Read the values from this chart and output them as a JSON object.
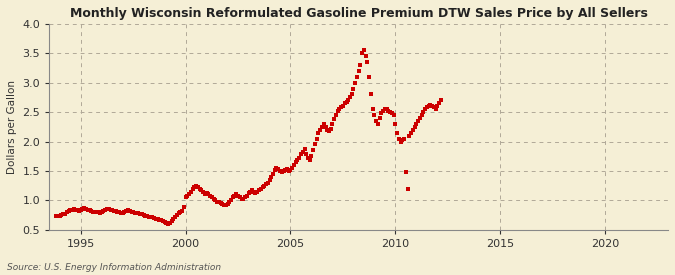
{
  "title": "Monthly Wisconsin Reformulated Gasoline Premium DTW Sales Price by All Sellers",
  "ylabel": "Dollars per Gallon",
  "source": "Source: U.S. Energy Information Administration",
  "background_color": "#f5efd6",
  "plot_bg_color": "#faf6ea",
  "line_color": "#cc0000",
  "ylim": [
    0.5,
    4.0
  ],
  "xlim": [
    1993.5,
    2023.0
  ],
  "yticks": [
    0.5,
    1.0,
    1.5,
    2.0,
    2.5,
    3.0,
    3.5,
    4.0
  ],
  "xticks": [
    1995,
    2000,
    2005,
    2010,
    2015,
    2020
  ],
  "years_data": [
    [
      1993.83,
      0.73
    ],
    [
      1993.92,
      0.74
    ],
    [
      1994.0,
      0.74
    ],
    [
      1994.08,
      0.75
    ],
    [
      1994.17,
      0.76
    ],
    [
      1994.25,
      0.77
    ],
    [
      1994.33,
      0.8
    ],
    [
      1994.42,
      0.82
    ],
    [
      1994.5,
      0.83
    ],
    [
      1994.58,
      0.84
    ],
    [
      1994.67,
      0.85
    ],
    [
      1994.75,
      0.84
    ],
    [
      1994.83,
      0.83
    ],
    [
      1994.92,
      0.82
    ],
    [
      1995.0,
      0.83
    ],
    [
      1995.08,
      0.85
    ],
    [
      1995.17,
      0.87
    ],
    [
      1995.25,
      0.86
    ],
    [
      1995.33,
      0.84
    ],
    [
      1995.42,
      0.83
    ],
    [
      1995.5,
      0.82
    ],
    [
      1995.58,
      0.81
    ],
    [
      1995.67,
      0.81
    ],
    [
      1995.75,
      0.8
    ],
    [
      1995.83,
      0.8
    ],
    [
      1995.92,
      0.79
    ],
    [
      1996.0,
      0.8
    ],
    [
      1996.08,
      0.82
    ],
    [
      1996.17,
      0.84
    ],
    [
      1996.25,
      0.86
    ],
    [
      1996.33,
      0.85
    ],
    [
      1996.42,
      0.84
    ],
    [
      1996.5,
      0.83
    ],
    [
      1996.58,
      0.82
    ],
    [
      1996.67,
      0.82
    ],
    [
      1996.75,
      0.81
    ],
    [
      1996.83,
      0.8
    ],
    [
      1996.92,
      0.79
    ],
    [
      1997.0,
      0.79
    ],
    [
      1997.08,
      0.8
    ],
    [
      1997.17,
      0.82
    ],
    [
      1997.25,
      0.83
    ],
    [
      1997.33,
      0.82
    ],
    [
      1997.42,
      0.81
    ],
    [
      1997.5,
      0.8
    ],
    [
      1997.58,
      0.79
    ],
    [
      1997.67,
      0.79
    ],
    [
      1997.75,
      0.78
    ],
    [
      1997.83,
      0.77
    ],
    [
      1997.92,
      0.76
    ],
    [
      1998.0,
      0.75
    ],
    [
      1998.08,
      0.74
    ],
    [
      1998.17,
      0.73
    ],
    [
      1998.25,
      0.72
    ],
    [
      1998.33,
      0.72
    ],
    [
      1998.42,
      0.71
    ],
    [
      1998.5,
      0.7
    ],
    [
      1998.58,
      0.69
    ],
    [
      1998.67,
      0.68
    ],
    [
      1998.75,
      0.67
    ],
    [
      1998.83,
      0.66
    ],
    [
      1998.92,
      0.65
    ],
    [
      1999.0,
      0.63
    ],
    [
      1999.08,
      0.61
    ],
    [
      1999.17,
      0.6
    ],
    [
      1999.25,
      0.62
    ],
    [
      1999.33,
      0.65
    ],
    [
      1999.42,
      0.68
    ],
    [
      1999.5,
      0.72
    ],
    [
      1999.58,
      0.75
    ],
    [
      1999.67,
      0.78
    ],
    [
      1999.75,
      0.8
    ],
    [
      1999.83,
      0.82
    ],
    [
      1999.92,
      0.88
    ],
    [
      2000.0,
      1.05
    ],
    [
      2000.08,
      1.08
    ],
    [
      2000.17,
      1.1
    ],
    [
      2000.25,
      1.15
    ],
    [
      2000.33,
      1.2
    ],
    [
      2000.42,
      1.22
    ],
    [
      2000.5,
      1.25
    ],
    [
      2000.58,
      1.22
    ],
    [
      2000.67,
      1.2
    ],
    [
      2000.75,
      1.18
    ],
    [
      2000.83,
      1.15
    ],
    [
      2000.92,
      1.1
    ],
    [
      2001.0,
      1.12
    ],
    [
      2001.08,
      1.1
    ],
    [
      2001.17,
      1.08
    ],
    [
      2001.25,
      1.05
    ],
    [
      2001.33,
      1.02
    ],
    [
      2001.42,
      1.0
    ],
    [
      2001.5,
      0.98
    ],
    [
      2001.58,
      0.97
    ],
    [
      2001.67,
      0.95
    ],
    [
      2001.75,
      0.93
    ],
    [
      2001.83,
      0.92
    ],
    [
      2001.92,
      0.92
    ],
    [
      2002.0,
      0.94
    ],
    [
      2002.08,
      0.97
    ],
    [
      2002.17,
      1.0
    ],
    [
      2002.25,
      1.05
    ],
    [
      2002.33,
      1.08
    ],
    [
      2002.42,
      1.1
    ],
    [
      2002.5,
      1.08
    ],
    [
      2002.58,
      1.05
    ],
    [
      2002.67,
      1.03
    ],
    [
      2002.75,
      1.02
    ],
    [
      2002.83,
      1.05
    ],
    [
      2002.92,
      1.08
    ],
    [
      2003.0,
      1.12
    ],
    [
      2003.08,
      1.15
    ],
    [
      2003.17,
      1.18
    ],
    [
      2003.25,
      1.15
    ],
    [
      2003.33,
      1.12
    ],
    [
      2003.42,
      1.15
    ],
    [
      2003.5,
      1.18
    ],
    [
      2003.58,
      1.2
    ],
    [
      2003.67,
      1.22
    ],
    [
      2003.75,
      1.25
    ],
    [
      2003.83,
      1.28
    ],
    [
      2003.92,
      1.3
    ],
    [
      2004.0,
      1.35
    ],
    [
      2004.08,
      1.4
    ],
    [
      2004.17,
      1.45
    ],
    [
      2004.25,
      1.52
    ],
    [
      2004.33,
      1.55
    ],
    [
      2004.42,
      1.53
    ],
    [
      2004.5,
      1.5
    ],
    [
      2004.58,
      1.48
    ],
    [
      2004.67,
      1.5
    ],
    [
      2004.75,
      1.52
    ],
    [
      2004.83,
      1.53
    ],
    [
      2004.92,
      1.5
    ],
    [
      2005.0,
      1.52
    ],
    [
      2005.08,
      1.55
    ],
    [
      2005.17,
      1.6
    ],
    [
      2005.25,
      1.65
    ],
    [
      2005.33,
      1.68
    ],
    [
      2005.42,
      1.72
    ],
    [
      2005.5,
      1.78
    ],
    [
      2005.58,
      1.82
    ],
    [
      2005.67,
      1.88
    ],
    [
      2005.75,
      1.78
    ],
    [
      2005.83,
      1.72
    ],
    [
      2005.92,
      1.68
    ],
    [
      2006.0,
      1.75
    ],
    [
      2006.08,
      1.85
    ],
    [
      2006.17,
      1.95
    ],
    [
      2006.25,
      2.05
    ],
    [
      2006.33,
      2.15
    ],
    [
      2006.42,
      2.2
    ],
    [
      2006.5,
      2.25
    ],
    [
      2006.58,
      2.3
    ],
    [
      2006.67,
      2.25
    ],
    [
      2006.75,
      2.2
    ],
    [
      2006.83,
      2.18
    ],
    [
      2006.92,
      2.22
    ],
    [
      2007.0,
      2.3
    ],
    [
      2007.08,
      2.38
    ],
    [
      2007.17,
      2.45
    ],
    [
      2007.25,
      2.52
    ],
    [
      2007.33,
      2.55
    ],
    [
      2007.42,
      2.58
    ],
    [
      2007.5,
      2.6
    ],
    [
      2007.58,
      2.65
    ],
    [
      2007.67,
      2.68
    ],
    [
      2007.75,
      2.7
    ],
    [
      2007.83,
      2.75
    ],
    [
      2007.92,
      2.8
    ],
    [
      2008.0,
      2.9
    ],
    [
      2008.08,
      3.0
    ],
    [
      2008.17,
      3.1
    ],
    [
      2008.25,
      3.2
    ],
    [
      2008.33,
      3.3
    ],
    [
      2008.42,
      3.5
    ],
    [
      2008.5,
      3.55
    ],
    [
      2008.58,
      3.45
    ],
    [
      2008.67,
      3.35
    ],
    [
      2008.75,
      3.1
    ],
    [
      2008.83,
      2.8
    ],
    [
      2008.92,
      2.55
    ],
    [
      2009.0,
      2.45
    ],
    [
      2009.08,
      2.35
    ],
    [
      2009.17,
      2.3
    ],
    [
      2009.25,
      2.4
    ],
    [
      2009.33,
      2.48
    ],
    [
      2009.42,
      2.52
    ],
    [
      2009.5,
      2.55
    ],
    [
      2009.58,
      2.55
    ],
    [
      2009.67,
      2.52
    ],
    [
      2009.75,
      2.5
    ],
    [
      2009.83,
      2.48
    ],
    [
      2009.92,
      2.45
    ],
    [
      2010.0,
      2.3
    ],
    [
      2010.08,
      2.15
    ],
    [
      2010.17,
      2.05
    ],
    [
      2010.25,
      2.0
    ],
    [
      2010.33,
      2.02
    ],
    [
      2010.42,
      2.05
    ],
    [
      2010.5,
      1.48
    ],
    [
      2010.58,
      1.2
    ],
    [
      2010.67,
      2.1
    ],
    [
      2010.75,
      2.15
    ],
    [
      2010.83,
      2.2
    ],
    [
      2010.92,
      2.25
    ],
    [
      2011.0,
      2.3
    ],
    [
      2011.08,
      2.35
    ],
    [
      2011.17,
      2.4
    ],
    [
      2011.25,
      2.45
    ],
    [
      2011.33,
      2.5
    ],
    [
      2011.42,
      2.55
    ],
    [
      2011.5,
      2.58
    ],
    [
      2011.58,
      2.6
    ],
    [
      2011.67,
      2.62
    ],
    [
      2011.75,
      2.6
    ],
    [
      2011.83,
      2.58
    ],
    [
      2011.92,
      2.55
    ],
    [
      2012.0,
      2.6
    ],
    [
      2012.08,
      2.65
    ],
    [
      2012.17,
      2.7
    ]
  ]
}
